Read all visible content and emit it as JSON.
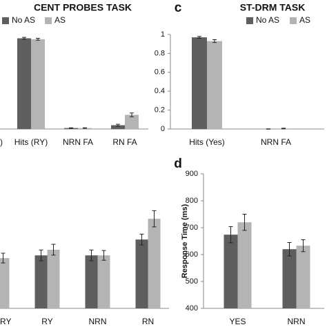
{
  "chart_data": [
    {
      "type": "bar",
      "title": "CENT PROBES TASK",
      "legend": "top",
      "categories": [
        ")",
        "Hits (RY)",
        "NRN FA",
        "RN FA"
      ],
      "ylim": [
        0,
        1
      ],
      "series": [
        {
          "name": "No AS",
          "color": "#5e5e5e",
          "values": [
            null,
            0.96,
            0.01,
            0.04
          ],
          "errors": [
            null,
            0.01,
            0.003,
            0.01
          ]
        },
        {
          "name": "AS",
          "color": "#b4b4b4",
          "values": [
            null,
            0.95,
            0.01,
            0.15
          ],
          "errors": [
            null,
            0.01,
            0.003,
            0.02
          ]
        }
      ]
    },
    {
      "type": "bar",
      "title": "ST-DRM TASK",
      "panel_label": "c",
      "legend": "top",
      "categories": [
        "Hits (Yes)",
        "NRN FA"
      ],
      "ylim": [
        0,
        1
      ],
      "yticks": [
        0,
        0.2,
        0.4,
        0.6,
        0.8,
        1
      ],
      "series": [
        {
          "name": "No AS",
          "color": "#5e5e5e",
          "values": [
            0.97,
            0.0
          ],
          "errors": [
            0.01,
            0.002
          ]
        },
        {
          "name": "AS",
          "color": "#b4b4b4",
          "values": [
            0.93,
            0.005
          ],
          "errors": [
            0.015,
            0.003
          ]
        }
      ]
    },
    {
      "type": "bar",
      "categories": [
        "RY",
        "RY",
        "NRN",
        "RN"
      ],
      "ylim": [
        400,
        900
      ],
      "series": [
        {
          "color": "#5e5e5e",
          "values": [
            null,
            597,
            597,
            656
          ],
          "errors": [
            null,
            20,
            20,
            20
          ]
        },
        {
          "color": "#b4b4b4",
          "values": [
            587,
            618,
            597,
            733
          ],
          "errors": [
            18,
            20,
            18,
            30
          ]
        }
      ]
    },
    {
      "type": "bar",
      "panel_label": "d",
      "y_label": "Response Time (ms)",
      "categories": [
        "YES",
        "NRN"
      ],
      "ylim": [
        400,
        900
      ],
      "yticks": [
        400,
        500,
        600,
        700,
        800,
        900
      ],
      "series": [
        {
          "color": "#5e5e5e",
          "values": [
            674,
            620
          ],
          "errors": [
            30,
            25
          ]
        },
        {
          "color": "#b4b4b4",
          "values": [
            720,
            633
          ],
          "errors": [
            30,
            22
          ]
        }
      ]
    }
  ]
}
